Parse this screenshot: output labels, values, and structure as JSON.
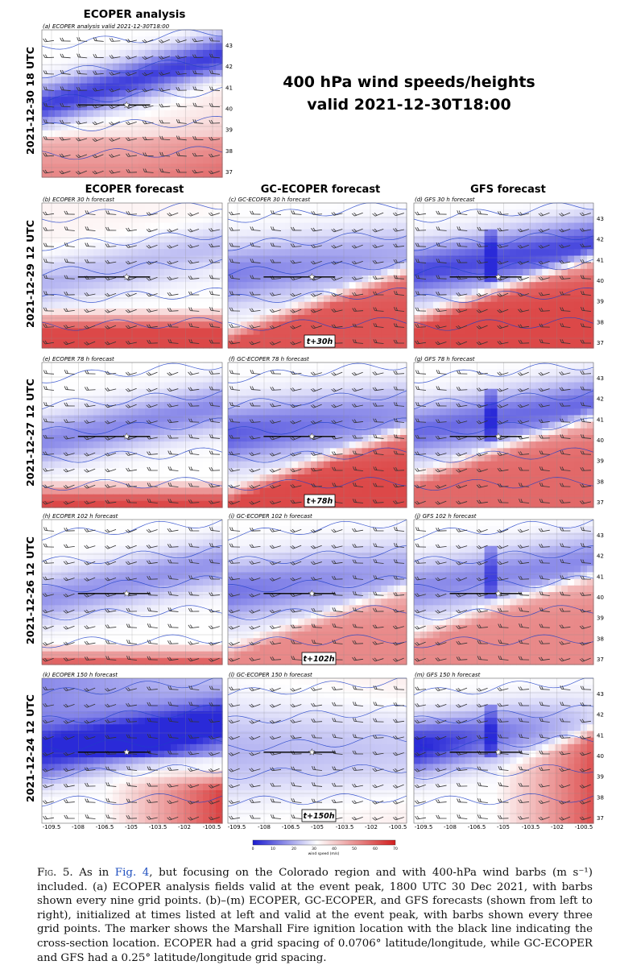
{
  "figure": {
    "analysis_column_title": "ECOPER analysis",
    "main_title_line1": "400 hPa wind speeds/heights",
    "main_title_line2": "valid 2021-12-30T18:00",
    "column_titles": [
      "ECOPER forecast",
      "GC-ECOPER forecast",
      "GFS forecast"
    ],
    "row_labels": [
      "2021-12-30 18 UTC",
      "2021-12-29 12 UTC",
      "2021-12-27 12 UTC",
      "2021-12-26 12 UTC",
      "2021-12-24 12 UTC"
    ],
    "analysis_panel_label": "(a) ECOPER analysis valid 2021-12-30T18:00",
    "panel_labels": [
      [
        "(b) ECOPER 30 h forecast",
        "(c) GC-ECOPER 30 h forecast",
        "(d) GFS 30 h forecast"
      ],
      [
        "(e) ECOPER 78 h forecast",
        "(f) GC-ECOPER 78 h forecast",
        "(g) GFS 78 h forecast"
      ],
      [
        "(h) ECOPER 102 h forecast",
        "(i) GC-ECOPER 102 h forecast",
        "(j) GFS 102 h forecast"
      ],
      [
        "(k) ECOPER 150 h forecast",
        "(l) GC-ECOPER 150 h forecast",
        "(m) GFS 150 h forecast"
      ]
    ],
    "lead_time_boxes": [
      "t+30h",
      "t+78h",
      "t+102h",
      "t+150h"
    ],
    "lat_ticks": [
      "43",
      "42",
      "41",
      "40",
      "39",
      "38",
      "37"
    ],
    "lon_ticks": [
      "-109.5",
      "-108",
      "-106.5",
      "-105",
      "-103.5",
      "-102",
      "-100.5"
    ],
    "colorbar": {
      "ticks": [
        "0",
        "10",
        "20",
        "30",
        "40",
        "50",
        "60",
        "70"
      ],
      "label": "wind speed (m/s)",
      "range": [
        0,
        70
      ],
      "colors": [
        "#2a2ad8",
        "#ffffff",
        "#d62828"
      ]
    },
    "color_scale": {
      "low": "#2a2ad8",
      "mid": "#ffffff",
      "high": "#d62828",
      "contour": "#1f3fc8",
      "barb": "#333333"
    }
  },
  "caption": {
    "label": "Fig. 5.",
    "part1": " As in ",
    "link": "Fig. 4",
    "part2": ", but focusing on the Colorado region and with 400-hPa wind barbs (m s⁻¹) included. (a) ECOPER analysis fields valid at the event peak, 1800 UTC 30 Dec 2021, with barbs shown every nine grid points. (b)–(m) ECOPER, GC-ECOPER, and GFS forecasts (shown from left to right), initialized at times listed at left and valid at the event peak, with barbs shown every three grid points. The marker shows the Marshall Fire ignition location with the black line indicating the cross-section location. ECOPER had a grid spacing of 0.0706° latitude/longitude, while GC-ECOPER and GFS had a 0.25° latitude/longitude grid spacing."
  }
}
